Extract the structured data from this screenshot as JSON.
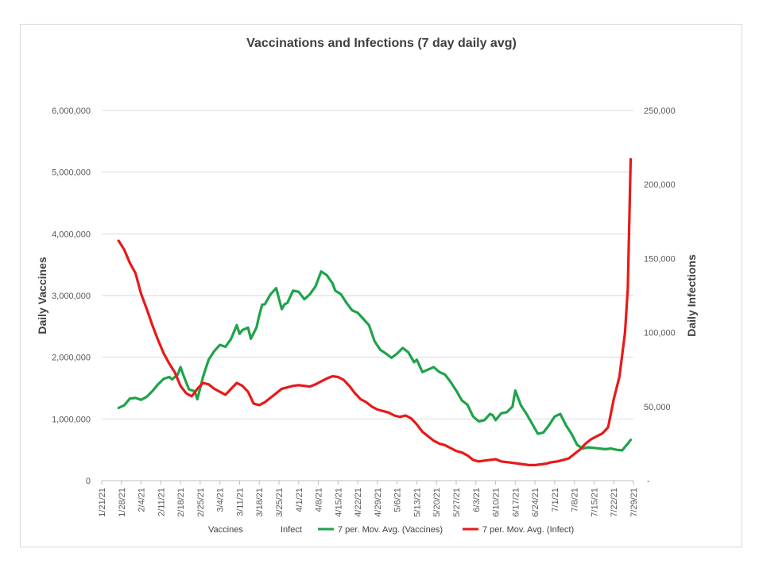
{
  "chart_data": {
    "type": "line",
    "title": "Vaccinations and Infections (7 day daily avg)",
    "ylabel": "Daily Vaccines",
    "y2label": "Daily Infections",
    "xlabel": "",
    "ylim": [
      0,
      6000000
    ],
    "y2lim": [
      0,
      250000
    ],
    "yticks": [
      "0",
      "1,000,000",
      "2,000,000",
      "3,000,000",
      "4,000,000",
      "5,000,000",
      "6,000,000"
    ],
    "y2ticks": [
      "-",
      "50,000",
      "100,000",
      "150,000",
      "200,000",
      "250,000"
    ],
    "xticks": [
      "1/21/21",
      "1/28/21",
      "2/4/21",
      "2/11/21",
      "2/18/21",
      "2/25/21",
      "3/4/21",
      "3/11/21",
      "3/18/21",
      "3/25/21",
      "4/1/21",
      "4/8/21",
      "4/15/21",
      "4/22/21",
      "4/29/21",
      "5/6/21",
      "5/13/21",
      "5/20/21",
      "5/27/21",
      "6/3/21",
      "6/10/21",
      "6/17/21",
      "6/24/21",
      "7/1/21",
      "7/8/21",
      "7/15/21",
      "7/22/21",
      "7/29/21"
    ],
    "grid": true,
    "legend_position": "bottom",
    "legend": [
      "Vaccines",
      "Infect",
      "7 per. Mov. Avg. (Vaccines)",
      "7 per. Mov. Avg. (Infect)"
    ],
    "series": [
      {
        "name": "7 per. Mov. Avg. (Vaccines)",
        "axis": "left",
        "color": "#1fa34a",
        "x": [
          "1/27/21",
          "1/29/21",
          "1/31/21",
          "2/2/21",
          "2/4/21",
          "2/6/21",
          "2/8/21",
          "2/10/21",
          "2/12/21",
          "2/14/21",
          "2/15/21",
          "2/17/21",
          "2/18/21",
          "2/19/21",
          "2/21/21",
          "2/23/21",
          "2/24/21",
          "2/26/21",
          "2/28/21",
          "3/2/21",
          "3/4/21",
          "3/6/21",
          "3/8/21",
          "3/10/21",
          "3/11/21",
          "3/12/21",
          "3/14/21",
          "3/15/21",
          "3/17/21",
          "3/18/21",
          "3/19/21",
          "3/20/21",
          "3/22/21",
          "3/24/21",
          "3/26/21",
          "3/27/21",
          "3/28/21",
          "3/30/21",
          "4/1/21",
          "4/3/21",
          "4/5/21",
          "4/7/21",
          "4/9/21",
          "4/11/21",
          "4/13/21",
          "4/14/21",
          "4/16/21",
          "4/18/21",
          "4/20/21",
          "4/22/21",
          "4/24/21",
          "4/26/21",
          "4/28/21",
          "4/30/21",
          "5/2/21",
          "5/4/21",
          "5/6/21",
          "5/8/21",
          "5/10/21",
          "5/12/21",
          "5/13/21",
          "5/15/21",
          "5/17/21",
          "5/19/21",
          "5/21/21",
          "5/23/21",
          "5/25/21",
          "5/27/21",
          "5/29/21",
          "5/31/21",
          "6/2/21",
          "6/4/21",
          "6/6/21",
          "6/8/21",
          "6/9/21",
          "6/10/21",
          "6/12/21",
          "6/14/21",
          "6/16/21",
          "6/17/21",
          "6/19/21",
          "6/21/21",
          "6/23/21",
          "6/25/21",
          "6/27/21",
          "6/29/21",
          "7/1/21",
          "7/3/21",
          "7/5/21",
          "7/7/21",
          "7/9/21",
          "7/11/21",
          "7/13/21",
          "7/15/21",
          "7/17/21",
          "7/19/21",
          "7/21/21",
          "7/23/21",
          "7/25/21",
          "7/27/21",
          "7/28/21"
        ],
        "values": [
          1180000,
          1220000,
          1330000,
          1340000,
          1310000,
          1360000,
          1450000,
          1560000,
          1650000,
          1680000,
          1640000,
          1720000,
          1840000,
          1710000,
          1480000,
          1450000,
          1320000,
          1680000,
          1960000,
          2100000,
          2200000,
          2170000,
          2300000,
          2520000,
          2380000,
          2440000,
          2480000,
          2300000,
          2480000,
          2680000,
          2850000,
          2860000,
          3020000,
          3120000,
          2780000,
          2860000,
          2880000,
          3080000,
          3060000,
          2940000,
          3020000,
          3150000,
          3390000,
          3330000,
          3200000,
          3080000,
          3020000,
          2880000,
          2760000,
          2720000,
          2620000,
          2520000,
          2260000,
          2120000,
          2060000,
          1990000,
          2060000,
          2150000,
          2080000,
          1920000,
          1960000,
          1760000,
          1800000,
          1840000,
          1760000,
          1720000,
          1600000,
          1460000,
          1300000,
          1230000,
          1040000,
          960000,
          980000,
          1080000,
          1060000,
          980000,
          1090000,
          1110000,
          1200000,
          1460000,
          1220000,
          1080000,
          920000,
          760000,
          780000,
          900000,
          1040000,
          1080000,
          900000,
          760000,
          580000,
          520000,
          540000,
          530000,
          520000,
          510000,
          520000,
          500000,
          490000,
          600000,
          660000
        ]
      },
      {
        "name": "7 per. Mov. Avg. (Infect)",
        "axis": "right",
        "color": "#e8191a",
        "x": [
          "1/27/21",
          "1/29/21",
          "1/31/21",
          "2/2/21",
          "2/4/21",
          "2/6/21",
          "2/8/21",
          "2/10/21",
          "2/12/21",
          "2/14/21",
          "2/16/21",
          "2/18/21",
          "2/20/21",
          "2/22/21",
          "2/24/21",
          "2/26/21",
          "2/28/21",
          "3/2/21",
          "3/4/21",
          "3/6/21",
          "3/8/21",
          "3/10/21",
          "3/12/21",
          "3/14/21",
          "3/16/21",
          "3/18/21",
          "3/20/21",
          "3/22/21",
          "3/24/21",
          "3/26/21",
          "3/28/21",
          "3/30/21",
          "4/1/21",
          "4/3/21",
          "4/5/21",
          "4/7/21",
          "4/9/21",
          "4/11/21",
          "4/13/21",
          "4/15/21",
          "4/17/21",
          "4/19/21",
          "4/21/21",
          "4/23/21",
          "4/25/21",
          "4/27/21",
          "4/29/21",
          "5/1/21",
          "5/3/21",
          "5/5/21",
          "5/7/21",
          "5/9/21",
          "5/11/21",
          "5/13/21",
          "5/15/21",
          "5/17/21",
          "5/19/21",
          "5/21/21",
          "5/23/21",
          "5/25/21",
          "5/27/21",
          "5/29/21",
          "5/31/21",
          "6/2/21",
          "6/4/21",
          "6/6/21",
          "6/8/21",
          "6/10/21",
          "6/12/21",
          "6/14/21",
          "6/16/21",
          "6/18/21",
          "6/20/21",
          "6/22/21",
          "6/24/21",
          "6/26/21",
          "6/28/21",
          "6/30/21",
          "7/2/21",
          "7/4/21",
          "7/6/21",
          "7/8/21",
          "7/10/21",
          "7/12/21",
          "7/14/21",
          "7/16/21",
          "7/18/21",
          "7/20/21",
          "7/22/21",
          "7/24/21",
          "7/26/21",
          "7/27/21",
          "7/28/21"
        ],
        "values": [
          162000,
          156000,
          147000,
          140000,
          126000,
          116000,
          105000,
          95000,
          86000,
          79000,
          73000,
          64000,
          59000,
          57000,
          62000,
          66000,
          65000,
          62000,
          60000,
          58000,
          62000,
          66000,
          64000,
          60000,
          52000,
          51000,
          53000,
          56000,
          59000,
          62000,
          63000,
          64000,
          64500,
          64000,
          63500,
          65000,
          67000,
          69000,
          70500,
          70000,
          68000,
          64000,
          59000,
          55000,
          53000,
          50000,
          48000,
          47000,
          46000,
          44000,
          43000,
          44000,
          42000,
          38000,
          33000,
          30000,
          27000,
          25000,
          24000,
          22000,
          20000,
          19000,
          17000,
          14000,
          13000,
          13500,
          14000,
          14500,
          13000,
          12500,
          12000,
          11500,
          11000,
          10500,
          10500,
          11000,
          11500,
          12500,
          13000,
          14000,
          15000,
          18000,
          21000,
          25000,
          28000,
          30000,
          32000,
          36000,
          55000,
          70000,
          100000,
          130000,
          217000
        ]
      }
    ]
  }
}
